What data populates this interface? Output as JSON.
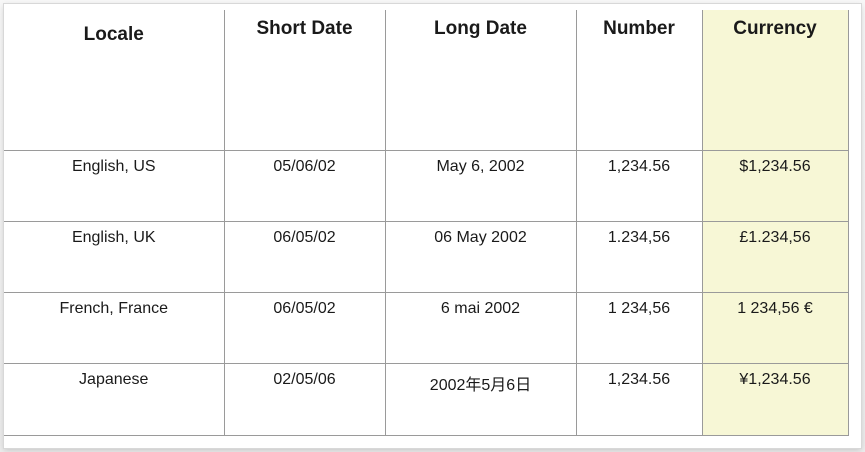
{
  "table": {
    "headers": [
      "Locale",
      "Short Date",
      "Long Date",
      "Number",
      "Currency"
    ],
    "rows": [
      [
        "English, US",
        "05/06/02",
        "May 6, 2002",
        "1,234.56",
        "$1,234.56"
      ],
      [
        "English, UK",
        "06/05/02",
        "06 May 2002",
        "1.234,56",
        "£1.234,56"
      ],
      [
        "French, France",
        "06/05/02",
        "6 mai 2002",
        "1 234,56",
        "1 234,56 €"
      ],
      [
        "Japanese",
        "02/05/06",
        "2002年5月6日",
        "1,234.56",
        "¥1,234.56"
      ]
    ]
  },
  "colors": {
    "currency_highlight": "#f7f7d6",
    "grid_line": "#9a9a9a",
    "text": "#1a1a1a"
  }
}
